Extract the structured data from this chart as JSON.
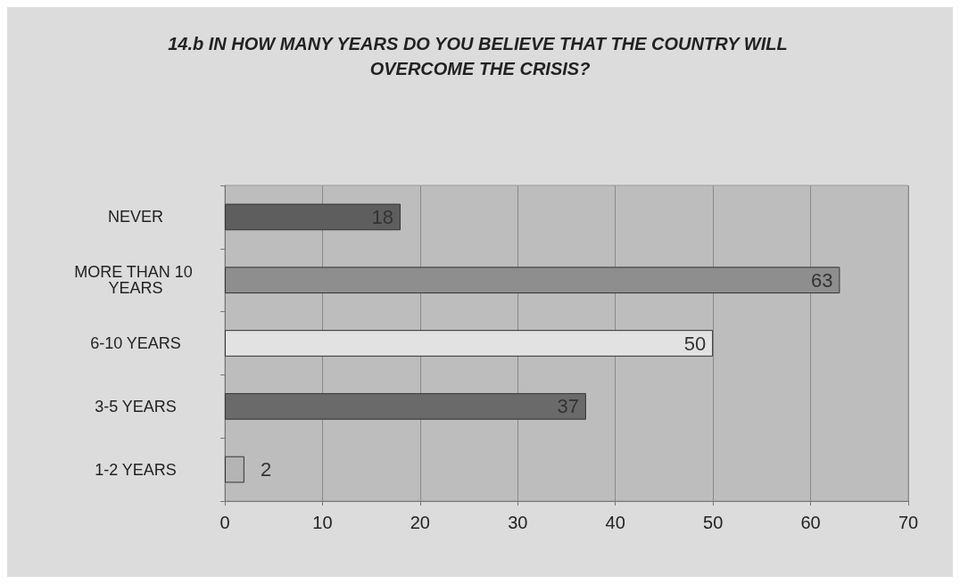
{
  "chart_data": {
    "type": "bar",
    "orientation": "horizontal",
    "title": "14.b IN HOW MANY YEARS DO YOU BELIEVE THAT THE COUNTRY WILL OVERCOME THE CRISIS?",
    "categories": [
      "NEVER",
      "MORE THAN 10 YEARS",
      "6-10 YEARS",
      "3-5 YEARS",
      "1-2 YEARS"
    ],
    "values": [
      18,
      63,
      50,
      37,
      2
    ],
    "colors": [
      "#5e5e5e",
      "#8e8e8e",
      "#e2e2e2",
      "#6a6a6a",
      "#b4b4b4"
    ],
    "xlim": [
      0,
      70
    ],
    "xticks": [
      0,
      10,
      20,
      30,
      40,
      50,
      60,
      70
    ],
    "grid": "x",
    "data_labels": true
  }
}
